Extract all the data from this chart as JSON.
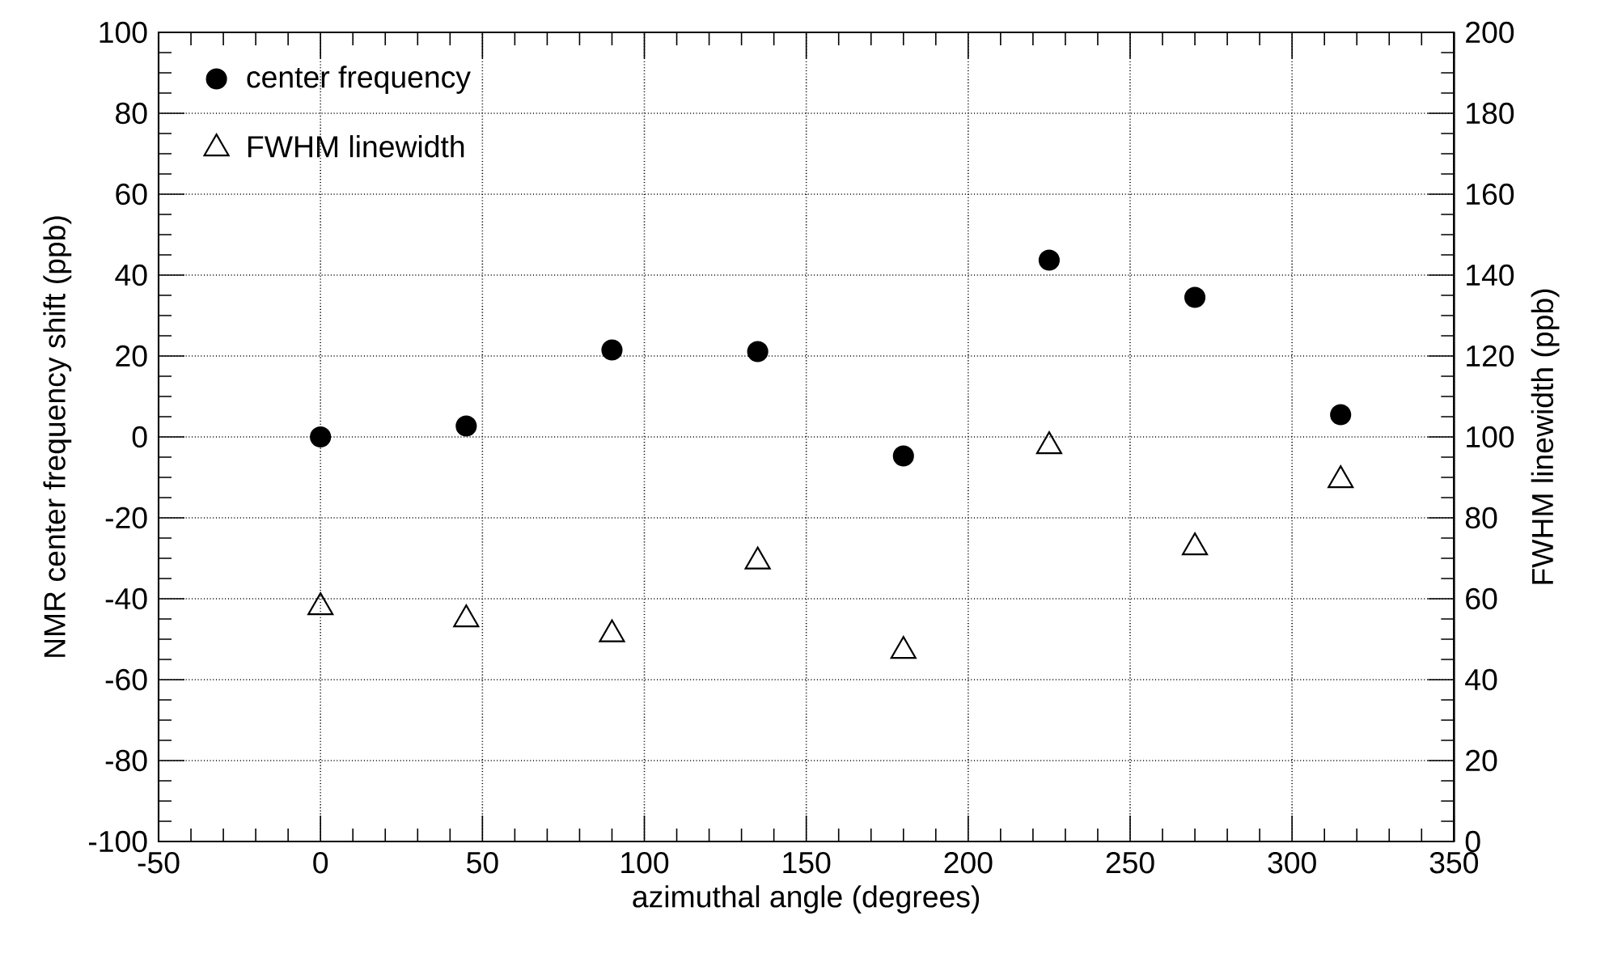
{
  "chart_data": {
    "type": "scatter",
    "xlabel": "azimuthal angle (degrees)",
    "ylabel": "NMR center frequency shift (ppb)",
    "y2label": "FWHM linewidth (ppb)",
    "x": [
      0,
      45,
      90,
      135,
      180,
      225,
      270,
      315
    ],
    "series": [
      {
        "name": "center frequency",
        "color": "#000000",
        "marker": "circle",
        "values": [
          0,
          2.7,
          21.5,
          21.1,
          -4.7,
          43.7,
          34.5,
          5.5
        ]
      },
      {
        "name": "FWHM linewidth",
        "color": "#000000",
        "marker": "triangle",
        "axis": "y2",
        "values": [
          57.9,
          54.9,
          51.2,
          69.2,
          47.1,
          97.7,
          72.7,
          89.3
        ]
      }
    ],
    "xlim": [
      -50,
      350
    ],
    "xticks": [
      -50,
      0,
      50,
      100,
      150,
      200,
      250,
      300,
      350
    ],
    "ylim": [
      -100,
      100
    ],
    "yticks": [
      -100,
      -80,
      -60,
      -40,
      -20,
      0,
      20,
      40,
      60,
      80,
      100
    ],
    "y2lim": [
      0,
      200
    ],
    "y2ticks": [
      0,
      20,
      40,
      60,
      80,
      100,
      120,
      140,
      160,
      180,
      200
    ],
    "grid": true,
    "legend": "top left"
  }
}
